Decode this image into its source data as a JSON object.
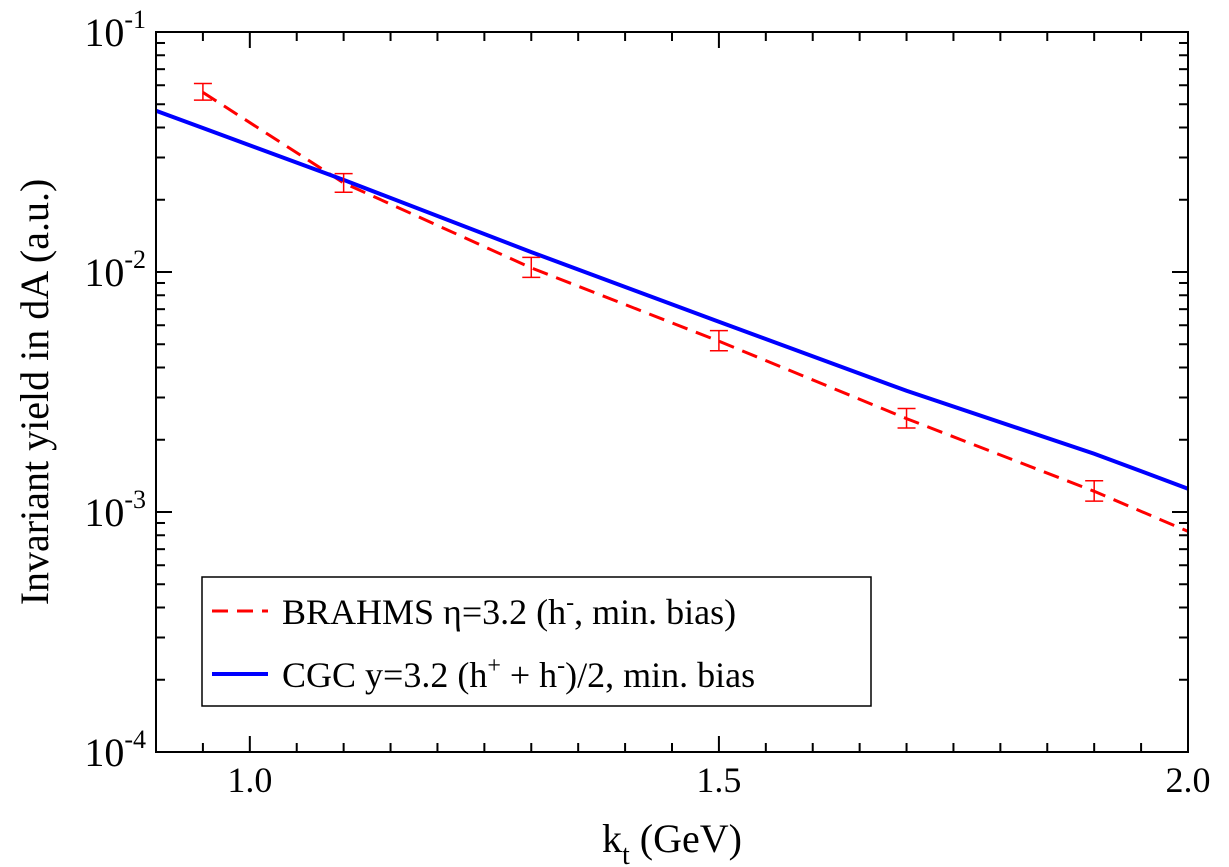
{
  "chart_data": {
    "type": "line",
    "title": "",
    "xlabel": {
      "main": "k",
      "sub": "t",
      "rest": " (GeV)"
    },
    "ylabel": "Invariant yield in dA (a.u.)",
    "xlim": [
      0.9,
      2.0
    ],
    "ylim": [
      0.0001,
      0.1
    ],
    "yscale": "log",
    "grid": false,
    "legend_position": "bottom-left",
    "x_tick_labels": [
      {
        "value": 1.0,
        "label": "1.0"
      },
      {
        "value": 1.5,
        "label": "1.5"
      },
      {
        "value": 2.0,
        "label": "2.0"
      }
    ],
    "y_tick_labels": [
      {
        "value": 0.1,
        "base": "10",
        "exp": "-1"
      },
      {
        "value": 0.01,
        "base": "10",
        "exp": "-2"
      },
      {
        "value": 0.001,
        "base": "10",
        "exp": "-3"
      },
      {
        "value": 0.0001,
        "base": "10",
        "exp": "-4"
      }
    ],
    "series": [
      {
        "name": "BRAHMS η=3.2 (h-, min. bias)",
        "legend_parts": {
          "pre": "BRAHMS η=3.2 (h",
          "sup": "-",
          "post": ", min. bias)"
        },
        "color": "#ff0000",
        "style": "dashed",
        "x": [
          0.95,
          1.1,
          1.3,
          1.5,
          1.7,
          1.9,
          2.0
        ],
        "y": [
          0.056,
          0.0235,
          0.0104,
          0.00515,
          0.00245,
          0.00122,
          0.00083
        ],
        "errors": [
          {
            "x": 0.95,
            "y": 0.056,
            "lo": 0.052,
            "hi": 0.061
          },
          {
            "x": 1.1,
            "y": 0.0235,
            "lo": 0.0215,
            "hi": 0.0257
          },
          {
            "x": 1.3,
            "y": 0.0104,
            "lo": 0.0095,
            "hi": 0.0115
          },
          {
            "x": 1.5,
            "y": 0.00515,
            "lo": 0.0047,
            "hi": 0.0057
          },
          {
            "x": 1.7,
            "y": 0.00245,
            "lo": 0.00224,
            "hi": 0.0027
          },
          {
            "x": 1.9,
            "y": 0.00122,
            "lo": 0.00111,
            "hi": 0.00135
          }
        ]
      },
      {
        "name": "CGC y=3.2 (h+ + h-)/2, min. bias",
        "legend_parts": {
          "pre": "CGC y=3.2 (h",
          "sup": "+",
          "mid": " + h",
          "sup2": "-",
          "post": ")/2, min. bias"
        },
        "color": "#0000ff",
        "style": "solid",
        "x": [
          0.9,
          1.1,
          1.3,
          1.5,
          1.7,
          1.9,
          2.0
        ],
        "y": [
          0.047,
          0.0242,
          0.0121,
          0.0062,
          0.0032,
          0.00175,
          0.00125
        ]
      }
    ]
  }
}
